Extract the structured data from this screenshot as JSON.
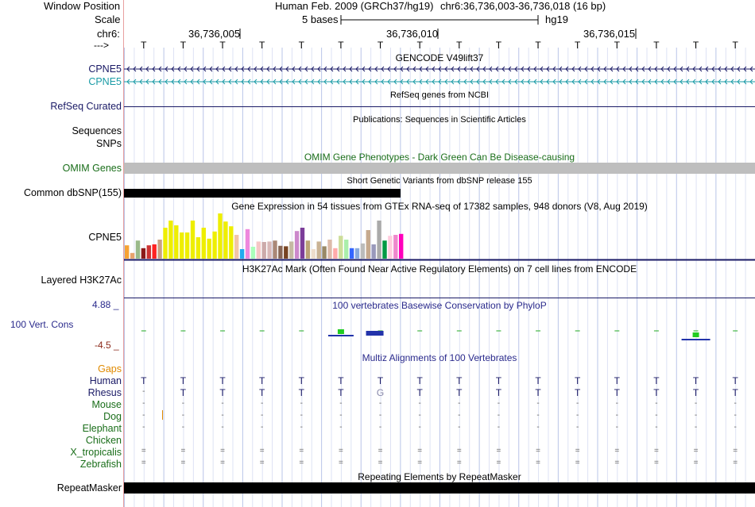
{
  "header": {
    "window_position_label": "Window Position",
    "assembly": "Human Feb. 2009 (GRCh37/hg19)",
    "position": "chr6:36,736,003-36,736,018 (16 bp)",
    "scale_label": "Scale",
    "scale_text": "5 bases",
    "scale_db": "hg19",
    "chrom_label": "chr6:",
    "strand_label": "--->",
    "ticks": [
      "36,736,005",
      "36,736,010",
      "36,736,015"
    ]
  },
  "sequence": [
    "T",
    "T",
    "T",
    "T",
    "T",
    "T",
    "T",
    "T",
    "T",
    "T",
    "T",
    "T",
    "T",
    "T",
    "T",
    "T"
  ],
  "tracks": {
    "gencode": {
      "title": "GENCODE V49lift37",
      "rows": [
        "CPNE5",
        "CPNE5"
      ],
      "colors": [
        "#1a1a66",
        "#1a9ba6"
      ]
    },
    "refseq": {
      "label": "RefSeq Curated",
      "title": "RefSeq genes from NCBI"
    },
    "publications": {
      "title": "Publications: Sequences in Scientific Articles",
      "labels": [
        "Sequences",
        "SNPs"
      ]
    },
    "omim": {
      "label": "OMIM Genes",
      "title": "OMIM Gene Phenotypes - Dark Green Can Be Disease-causing"
    },
    "dbsnp": {
      "label": "Common dbSNP(155)",
      "title": "Short Genetic Variants from dbSNP release 155"
    },
    "gtex": {
      "label": "CPNE5",
      "title": "Gene Expression in 54 tissues from GTEx RNA-seq of 17382 samples, 948 donors (V8, Aug 2019)",
      "bars": [
        {
          "h": 0.28,
          "c": "#f7a233"
        },
        {
          "h": 0.12,
          "c": "#e8a36d"
        },
        {
          "h": 0.38,
          "c": "#9aba8a"
        },
        {
          "h": 0.22,
          "c": "#8b1a1a"
        },
        {
          "h": 0.28,
          "c": "#cc3333"
        },
        {
          "h": 0.3,
          "c": "#ff2222"
        },
        {
          "h": 0.4,
          "c": "#c9a283"
        },
        {
          "h": 0.65,
          "c": "#eeee00"
        },
        {
          "h": 0.8,
          "c": "#eeee00"
        },
        {
          "h": 0.7,
          "c": "#eeee00"
        },
        {
          "h": 0.55,
          "c": "#eeee00"
        },
        {
          "h": 0.55,
          "c": "#eeee00"
        },
        {
          "h": 0.8,
          "c": "#eeee00"
        },
        {
          "h": 0.45,
          "c": "#eeee00"
        },
        {
          "h": 0.65,
          "c": "#eeee00"
        },
        {
          "h": 0.42,
          "c": "#eeee00"
        },
        {
          "h": 0.57,
          "c": "#eeee00"
        },
        {
          "h": 0.95,
          "c": "#eeee00"
        },
        {
          "h": 0.78,
          "c": "#eeee00"
        },
        {
          "h": 0.68,
          "c": "#eeee00"
        },
        {
          "h": 0.5,
          "c": "#f2c5a7"
        },
        {
          "h": 0.2,
          "c": "#22aaee"
        },
        {
          "h": 0.62,
          "c": "#ee88dd"
        },
        {
          "h": 0.25,
          "c": "#aaffbb"
        },
        {
          "h": 0.36,
          "c": "#f5c6c6"
        },
        {
          "h": 0.35,
          "c": "#ccaaaa"
        },
        {
          "h": 0.36,
          "c": "#d9b8b8"
        },
        {
          "h": 0.38,
          "c": "#aa8877"
        },
        {
          "h": 0.27,
          "c": "#886655"
        },
        {
          "h": 0.26,
          "c": "#774422"
        },
        {
          "h": 0.36,
          "c": "#c5b9a3"
        },
        {
          "h": 0.58,
          "c": "#cc88cc"
        },
        {
          "h": 0.65,
          "c": "#7b3d99"
        },
        {
          "h": 0.38,
          "c": "#bba377"
        },
        {
          "h": 0.2,
          "c": "#eeddcc"
        },
        {
          "h": 0.36,
          "c": "#c9b294"
        },
        {
          "h": 0.26,
          "c": "#998866"
        },
        {
          "h": 0.4,
          "c": "#ddbbaa"
        },
        {
          "h": 0.22,
          "c": "#ffaaaa"
        },
        {
          "h": 0.48,
          "c": "#ccdd99"
        },
        {
          "h": 0.4,
          "c": "#aaeeaa"
        },
        {
          "h": 0.22,
          "c": "#3366ff"
        },
        {
          "h": 0.22,
          "c": "#88aadd"
        },
        {
          "h": 0.32,
          "c": "#bbbbbb"
        },
        {
          "h": 0.6,
          "c": "#c6a98e"
        },
        {
          "h": 0.3,
          "c": "#9999bb"
        },
        {
          "h": 0.8,
          "c": "#aaaaaa"
        },
        {
          "h": 0.38,
          "c": "#009944"
        },
        {
          "h": 0.48,
          "c": "#ffccdd"
        },
        {
          "h": 0.5,
          "c": "#ee88cc"
        },
        {
          "h": 0.52,
          "c": "#ff00bb"
        }
      ]
    },
    "h3k27ac": {
      "label": "Layered H3K27Ac",
      "title": "H3K27Ac Mark (Often Found Near Active Regulatory Elements) on 7 cell lines from ENCODE"
    },
    "phylop": {
      "label": "100 Vert. Cons",
      "ymax": "4.88 _",
      "ymin": "-4.5 _",
      "title": "100 vertebrates Basewise Conservation by PhyloP"
    },
    "multiz": {
      "title": "Multiz Alignments of 100 Vertebrates",
      "gaps_label": "Gaps",
      "species": [
        {
          "name": "Human",
          "color": "#1a1a66",
          "row": "TTTTTTTTTTTTTTTT"
        },
        {
          "name": "Rhesus",
          "color": "#1a1a66",
          "row": "-TTTTTGTTTTTTTTT"
        },
        {
          "name": "Mouse",
          "color": "#1a6e1a",
          "row": "----------------"
        },
        {
          "name": "Dog",
          "color": "#1a6e1a",
          "row": "----------------"
        },
        {
          "name": "Elephant",
          "color": "#1a6e1a",
          "row": "----------------"
        },
        {
          "name": "Chicken",
          "color": "#1a6e1a",
          "row": ""
        },
        {
          "name": "X_tropicalis",
          "color": "#1a6e1a",
          "row": "================"
        },
        {
          "name": "Zebrafish",
          "color": "#1a6e1a",
          "row": "================"
        }
      ]
    },
    "repeatmasker": {
      "label": "RepeatMasker",
      "title": "Repeating Elements by RepeatMasker"
    }
  }
}
